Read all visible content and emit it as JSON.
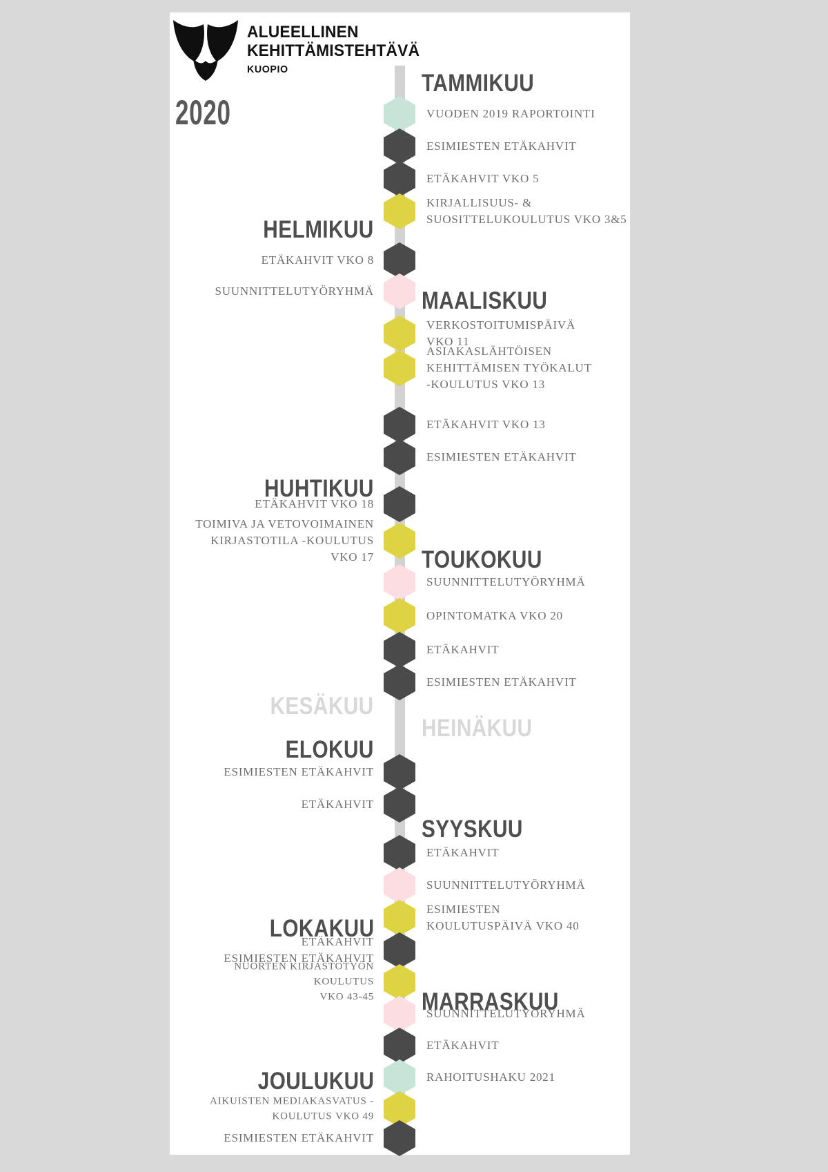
{
  "header": {
    "org_line1": "ALUEELLINEN",
    "org_line2": "KEHITTÄMISTEHTÄVÄ",
    "org_city": "KUOPIO",
    "year": "2020"
  },
  "colors": {
    "background": "#d9d9d9",
    "card": "#ffffff",
    "timeline_bar": "#d2d2d2",
    "hex_dark": "#4a4a4a",
    "hex_yellow": "#ded343",
    "hex_pink": "#fbdde2",
    "hex_teal": "#c7e4d9",
    "month_text": "#4e4e4e",
    "month_muted": "#d8d8d8",
    "event_text": "#6e6e6e",
    "year_text": "#595959"
  },
  "timeline": {
    "months": [
      {
        "label": "TAMMIKUU",
        "muted": false
      },
      {
        "label": "HELMIKUU",
        "muted": false
      },
      {
        "label": "MAALISKUU",
        "muted": false
      },
      {
        "label": "HUHTIKUU",
        "muted": false
      },
      {
        "label": "TOUKOKUU",
        "muted": false
      },
      {
        "label": "KESÄKUU",
        "muted": true
      },
      {
        "label": "HEINÄKUU",
        "muted": true
      },
      {
        "label": "ELOKUU",
        "muted": false
      },
      {
        "label": "SYYSKUU",
        "muted": false
      },
      {
        "label": "LOKAKUU",
        "muted": false
      },
      {
        "label": "MARRASKUU",
        "muted": false
      },
      {
        "label": "JOULUKUU",
        "muted": false
      }
    ],
    "items": [
      {
        "color": "teal",
        "label": "VUODEN 2019 RAPORTOINTI"
      },
      {
        "color": "dark",
        "label": "ESIMIESTEN ETÄKAHVIT"
      },
      {
        "color": "dark",
        "label": "ETÄKAHVIT VKO 5"
      },
      {
        "color": "yellow",
        "label": "KIRJALLISUUS- &\nSUOSITTELUKOULUTUS VKO 3&5"
      },
      {
        "color": "dark",
        "label": "ETÄKAHVIT VKO 8"
      },
      {
        "color": "pink",
        "label": "SUUNNITTELUTYÖRYHMÄ"
      },
      {
        "color": "yellow",
        "label": "VERKOSTOITUMISPÄIVÄ\nVKO 11"
      },
      {
        "color": "yellow",
        "label": "ASIAKASLÄHTÖISEN\nKEHITTÄMISEN TYÖKALUT\n-KOULUTUS VKO 13"
      },
      {
        "color": "dark",
        "label": "ETÄKAHVIT VKO 13"
      },
      {
        "color": "dark",
        "label": "ESIMIESTEN ETÄKAHVIT"
      },
      {
        "color": "dark",
        "label": "ETÄKAHVIT VKO 18"
      },
      {
        "color": "yellow",
        "label": "TOIMIVA JA VETOVOIMAINEN\nKIRJASTOTILA -KOULUTUS\nVKO 17"
      },
      {
        "color": "pink",
        "label": "SUUNNITTELUTYÖRYHMÄ"
      },
      {
        "color": "yellow",
        "label": "OPINTOMATKA VKO 20"
      },
      {
        "color": "dark",
        "label": "ETÄKAHVIT"
      },
      {
        "color": "dark",
        "label": "ESIMIESTEN ETÄKAHVIT"
      },
      {
        "color": "dark",
        "label": "ESIMIESTEN ETÄKAHVIT"
      },
      {
        "color": "dark",
        "label": "ETÄKAHVIT"
      },
      {
        "color": "dark",
        "label": "ETÄKAHVIT"
      },
      {
        "color": "pink",
        "label": "SUUNNITTELUTYÖRYHMÄ"
      },
      {
        "color": "yellow",
        "label": "ESIMIESTEN\nKOULUTUSPÄIVÄ VKO 40"
      },
      {
        "color": "dark",
        "label": "ETÄKAHVIT\nESIMIESTEN ETÄKAHVIT"
      },
      {
        "color": "yellow",
        "label": "NUORTEN KIRJASTOTYÖN\nKOULUTUS\nVKO 43-45"
      },
      {
        "color": "pink",
        "label": "SUUNNITTELUTYÖRYHMÄ"
      },
      {
        "color": "dark",
        "label": "ETÄKAHVIT"
      },
      {
        "color": "teal",
        "label": "RAHOITUSHAKU 2021"
      },
      {
        "color": "yellow",
        "label": "AIKUISTEN MEDIAKASVATUS -\nKOULUTUS VKO 49"
      },
      {
        "color": "dark",
        "label": "ESIMIESTEN ETÄKAHVIT"
      }
    ]
  }
}
